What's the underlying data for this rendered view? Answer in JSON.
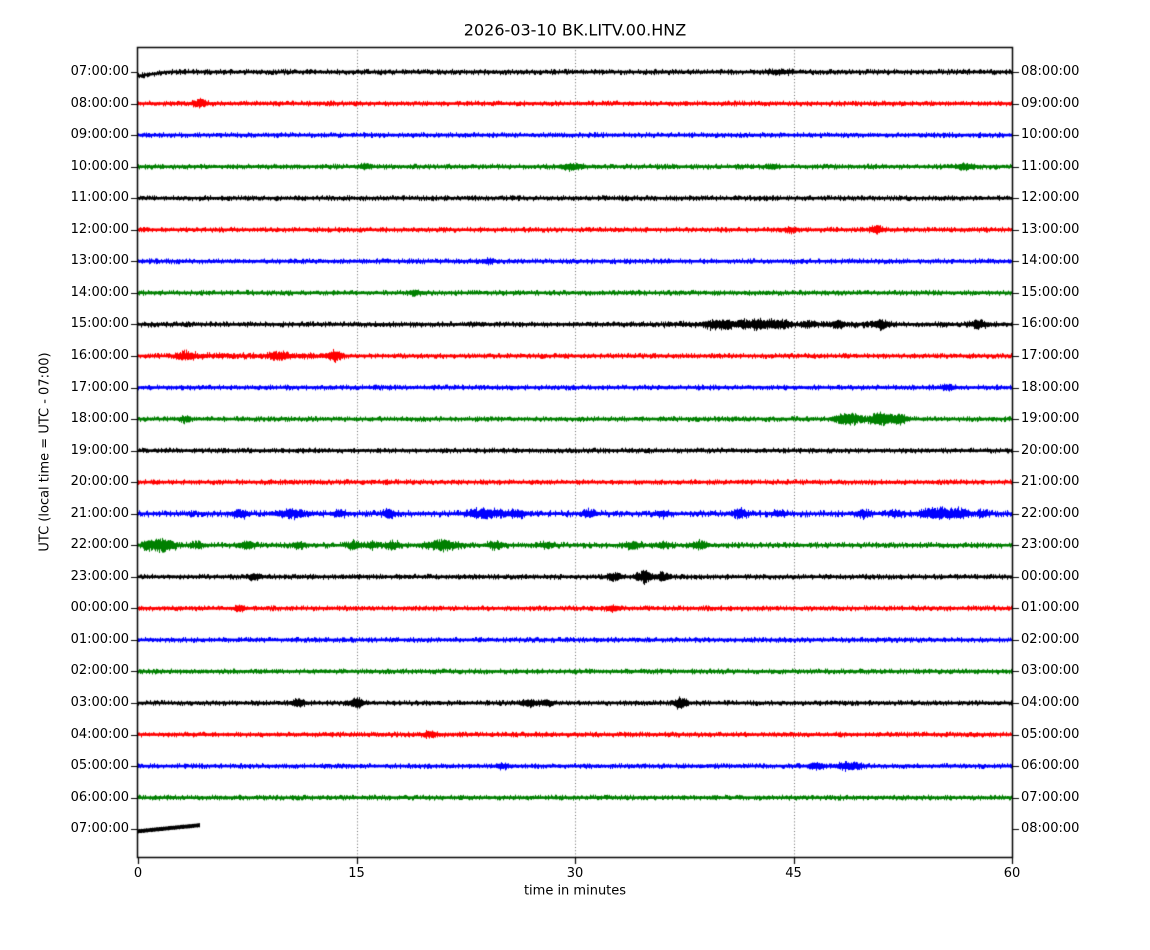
{
  "figure": {
    "title": "2026-03-10 BK.LITV.00.HNZ",
    "xlabel": "time in minutes",
    "ylabel": "UTC (local time = UTC - 07:00)"
  },
  "chart_data": {
    "type": "line",
    "subtype": "helicorder-dayplot",
    "title": "2026-03-10 BK.LITV.00.HNZ",
    "date": "2026-03-10",
    "station_id": "BK.LITV.00.HNZ",
    "xlabel": "time in minutes",
    "ylabel": "UTC (local time = UTC - 07:00)",
    "xlim": [
      0,
      60
    ],
    "x_ticks": [
      0,
      15,
      30,
      45,
      60
    ],
    "x_tick_labels": [
      "0",
      "15",
      "30",
      "45",
      "60"
    ],
    "grid_minutes": [
      15,
      30,
      45
    ],
    "grid_style": "dotted-vertical",
    "legend": "none",
    "trace_color_cycle": [
      "#000000",
      "#ff0000",
      "#0000ff",
      "#008000"
    ],
    "minutes_per_row": 60,
    "rows": [
      {
        "utc_start": "07:00:00",
        "utc_end": "08:00:00",
        "color": "#000000",
        "base": 1.0,
        "events": [
          [
            44,
            1.5,
            0.6
          ]
        ],
        "elevated": [],
        "ramp": [
          4,
          2
        ]
      },
      {
        "utc_start": "08:00:00",
        "utc_end": "09:00:00",
        "color": "#ff0000",
        "base": 0.9,
        "events": [
          [
            4.2,
            3.5,
            0.3
          ]
        ],
        "elevated": []
      },
      {
        "utc_start": "09:00:00",
        "utc_end": "10:00:00",
        "color": "#0000ff",
        "base": 0.9,
        "events": [],
        "elevated": []
      },
      {
        "utc_start": "10:00:00",
        "utc_end": "11:00:00",
        "color": "#008000",
        "base": 0.9,
        "events": [
          [
            15.6,
            2.5,
            0.25
          ],
          [
            29.8,
            3,
            0.5
          ],
          [
            43.5,
            2,
            0.3
          ],
          [
            56.8,
            2.5,
            0.4
          ]
        ],
        "elevated": []
      },
      {
        "utc_start": "11:00:00",
        "utc_end": "12:00:00",
        "color": "#000000",
        "base": 0.9,
        "events": [],
        "elevated": []
      },
      {
        "utc_start": "12:00:00",
        "utc_end": "13:00:00",
        "color": "#ff0000",
        "base": 0.9,
        "events": [
          [
            44.8,
            2,
            0.3
          ],
          [
            50.7,
            3.5,
            0.3
          ]
        ],
        "elevated": []
      },
      {
        "utc_start": "13:00:00",
        "utc_end": "14:00:00",
        "color": "#0000ff",
        "base": 0.9,
        "events": [
          [
            24,
            2,
            0.25
          ]
        ],
        "elevated": []
      },
      {
        "utc_start": "14:00:00",
        "utc_end": "15:00:00",
        "color": "#008000",
        "base": 0.9,
        "events": [
          [
            19,
            2,
            0.25
          ]
        ],
        "elevated": []
      },
      {
        "utc_start": "15:00:00",
        "utc_end": "16:00:00",
        "color": "#000000",
        "base": 1.0,
        "events": [
          [
            39.5,
            3,
            0.4
          ],
          [
            40.5,
            3.5,
            0.3
          ],
          [
            41.5,
            3.5,
            0.3
          ],
          [
            42.5,
            4,
            0.35
          ],
          [
            43.5,
            3.5,
            0.3
          ],
          [
            44.3,
            3.5,
            0.3
          ],
          [
            46,
            2.5,
            0.3
          ],
          [
            48,
            2.5,
            0.3
          ],
          [
            51,
            3.5,
            0.3
          ],
          [
            57.7,
            4,
            0.35
          ]
        ],
        "elevated": [
          [
            36,
            52,
            1.2
          ]
        ]
      },
      {
        "utc_start": "16:00:00",
        "utc_end": "17:00:00",
        "color": "#ff0000",
        "base": 0.9,
        "events": [
          [
            3.3,
            3.5,
            0.4
          ],
          [
            9.7,
            3.5,
            0.4
          ],
          [
            13.5,
            3.5,
            0.35
          ]
        ],
        "elevated": [
          [
            2.5,
            14,
            1.0
          ]
        ]
      },
      {
        "utc_start": "17:00:00",
        "utc_end": "18:00:00",
        "color": "#0000ff",
        "base": 0.9,
        "events": [
          [
            55.6,
            2.5,
            0.3
          ]
        ],
        "elevated": []
      },
      {
        "utc_start": "18:00:00",
        "utc_end": "19:00:00",
        "color": "#008000",
        "base": 0.9,
        "events": [
          [
            3.2,
            2.5,
            0.25
          ],
          [
            48.3,
            3.5,
            0.3
          ],
          [
            49,
            3.5,
            0.3
          ],
          [
            51,
            5,
            0.6
          ],
          [
            52.3,
            4,
            0.3
          ]
        ],
        "elevated": [
          [
            47.5,
            52.5,
            1.5
          ]
        ]
      },
      {
        "utc_start": "19:00:00",
        "utc_end": "20:00:00",
        "color": "#000000",
        "base": 0.9,
        "events": [],
        "elevated": []
      },
      {
        "utc_start": "20:00:00",
        "utc_end": "21:00:00",
        "color": "#ff0000",
        "base": 0.9,
        "events": [],
        "elevated": []
      },
      {
        "utc_start": "21:00:00",
        "utc_end": "22:00:00",
        "color": "#0000ff",
        "base": 1.3,
        "events": [
          [
            7,
            3.5,
            0.35
          ],
          [
            10.5,
            4,
            0.7
          ],
          [
            13.8,
            2.5,
            0.3
          ],
          [
            17.2,
            3.5,
            0.3
          ],
          [
            23.8,
            4,
            0.8
          ],
          [
            26,
            3.5,
            0.4
          ],
          [
            31,
            3.5,
            0.3
          ],
          [
            36,
            2.5,
            0.3
          ],
          [
            41.3,
            4,
            0.35
          ],
          [
            44,
            2.5,
            0.3
          ],
          [
            49.8,
            3.5,
            0.3
          ],
          [
            52,
            2.5,
            0.3
          ],
          [
            55,
            5,
            0.8
          ],
          [
            56.5,
            3.5,
            0.4
          ],
          [
            58,
            2.5,
            0.3
          ]
        ],
        "elevated": []
      },
      {
        "utc_start": "22:00:00",
        "utc_end": "23:00:00",
        "color": "#008000",
        "base": 1.1,
        "events": [
          [
            0.7,
            3.5,
            0.3
          ],
          [
            1.5,
            6,
            0.4
          ],
          [
            2.2,
            3.5,
            0.3
          ],
          [
            4,
            2.5,
            0.3
          ],
          [
            7.4,
            4,
            0.35
          ],
          [
            11,
            2.5,
            0.3
          ],
          [
            14.8,
            3.5,
            0.3
          ],
          [
            16,
            2.5,
            0.3
          ],
          [
            17.5,
            3.5,
            0.3
          ],
          [
            20.8,
            5,
            0.7
          ],
          [
            24.5,
            3.5,
            0.35
          ],
          [
            28,
            2.5,
            0.3
          ],
          [
            34,
            3.5,
            0.35
          ],
          [
            36,
            2.5,
            0.3
          ],
          [
            38.5,
            3.5,
            0.35
          ]
        ],
        "elevated": []
      },
      {
        "utc_start": "23:00:00",
        "utc_end": "00:00:00",
        "color": "#000000",
        "base": 0.9,
        "events": [
          [
            8,
            2.5,
            0.3
          ],
          [
            32.7,
            3.5,
            0.3
          ],
          [
            34.7,
            5.5,
            0.35
          ],
          [
            36,
            3.5,
            0.3
          ]
        ],
        "elevated": []
      },
      {
        "utc_start": "00:00:00",
        "utc_end": "01:00:00",
        "color": "#ff0000",
        "base": 0.9,
        "events": [
          [
            7,
            2,
            0.25
          ],
          [
            32.6,
            2.5,
            0.3
          ]
        ],
        "elevated": []
      },
      {
        "utc_start": "01:00:00",
        "utc_end": "02:00:00",
        "color": "#0000ff",
        "base": 0.9,
        "events": [],
        "elevated": []
      },
      {
        "utc_start": "02:00:00",
        "utc_end": "03:00:00",
        "color": "#008000",
        "base": 0.9,
        "events": [],
        "elevated": []
      },
      {
        "utc_start": "03:00:00",
        "utc_end": "04:00:00",
        "color": "#000000",
        "base": 0.9,
        "events": [
          [
            11,
            3.5,
            0.3
          ],
          [
            15,
            4.5,
            0.3
          ],
          [
            26.8,
            3.5,
            0.35
          ],
          [
            28,
            2.5,
            0.3
          ],
          [
            37.2,
            4.5,
            0.3
          ]
        ],
        "elevated": []
      },
      {
        "utc_start": "04:00:00",
        "utc_end": "05:00:00",
        "color": "#ff0000",
        "base": 0.9,
        "events": [
          [
            20,
            2.5,
            0.3
          ]
        ],
        "elevated": []
      },
      {
        "utc_start": "05:00:00",
        "utc_end": "06:00:00",
        "color": "#0000ff",
        "base": 0.9,
        "events": [
          [
            25,
            2,
            0.3
          ],
          [
            46.5,
            3.5,
            0.3
          ],
          [
            48.5,
            3.5,
            0.35
          ],
          [
            49.3,
            2.5,
            0.3
          ]
        ],
        "elevated": []
      },
      {
        "utc_start": "06:00:00",
        "utc_end": "07:00:00",
        "color": "#008000",
        "base": 0.9,
        "events": [],
        "elevated": []
      },
      {
        "utc_start": "07:00:00",
        "utc_end": "08:00:00",
        "color": "#000000",
        "base": 0.4,
        "events": [],
        "elevated": [],
        "partial": {
          "end_minute": 4.2,
          "offset_start": 2,
          "offset_end": -4,
          "half_width": 1.8
        }
      }
    ]
  }
}
